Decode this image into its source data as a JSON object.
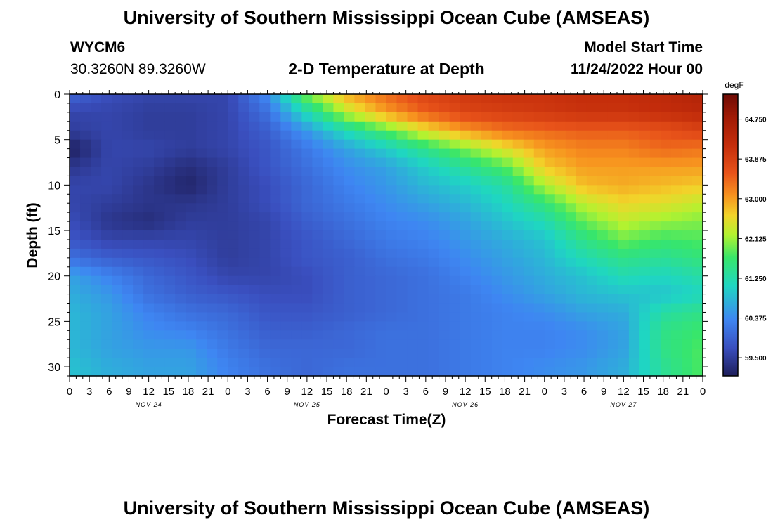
{
  "page": {
    "title": "University of Southern Mississippi Ocean Cube (AMSEAS)",
    "title_bottom": "University of Southern Mississippi Ocean Cube (AMSEAS)",
    "station": "WYCM6",
    "location": "30.3260N  89.3260W",
    "subtitle": "2-D Temperature at Depth",
    "model_label": "Model Start Time",
    "model_time": "11/24/2022 Hour 00"
  },
  "chart_data": {
    "type": "heatmap",
    "title": "2-D Temperature at Depth",
    "xlabel": "Forecast Time(Z)",
    "ylabel": "Depth (ft)",
    "x_hours": [
      0,
      3,
      6,
      9,
      12,
      15,
      18,
      21,
      24,
      27,
      30,
      33,
      36,
      39,
      42,
      45,
      48,
      51,
      54,
      57,
      60,
      63,
      66,
      69,
      72,
      75,
      78,
      81,
      84,
      87,
      90,
      93,
      96
    ],
    "x_tick_labels": [
      "0",
      "3",
      "6",
      "9",
      "12",
      "15",
      "18",
      "21",
      "0",
      "3",
      "6",
      "9",
      "12",
      "15",
      "18",
      "21",
      "0",
      "3",
      "6",
      "9",
      "12",
      "15",
      "18",
      "21",
      "0",
      "3",
      "6",
      "9",
      "12",
      "15",
      "18",
      "21",
      "0"
    ],
    "x_range": [
      0,
      96
    ],
    "day_labels": [
      {
        "hour": 12,
        "label": "NOV 24"
      },
      {
        "hour": 36,
        "label": "NOV 25"
      },
      {
        "hour": 60,
        "label": "NOV 26"
      },
      {
        "hour": 84,
        "label": "NOV 27"
      }
    ],
    "y_ticks": [
      0,
      5,
      10,
      15,
      20,
      25,
      30
    ],
    "y_range": [
      0,
      31
    ],
    "depths": [
      0,
      2,
      4,
      6,
      8,
      10,
      12,
      14,
      16,
      18,
      20,
      22,
      24,
      26,
      28,
      30
    ],
    "temperature": [
      [
        60.0,
        59.7,
        59.6,
        59.6,
        59.6,
        60.4,
        62.0,
        62.9,
        63.4,
        63.8,
        64.0,
        64.1,
        64.1,
        64.2,
        64.2,
        64.3,
        64.5
      ],
      [
        59.6,
        59.6,
        59.5,
        59.5,
        59.6,
        60.1,
        61.2,
        62.3,
        63.0,
        63.5,
        63.8,
        63.9,
        64.0,
        64.1,
        64.1,
        64.2,
        64.3
      ],
      [
        59.5,
        59.6,
        59.5,
        59.5,
        59.6,
        59.9,
        60.5,
        61.2,
        61.8,
        62.5,
        63.0,
        63.3,
        63.4,
        63.5,
        63.5,
        63.6,
        63.8
      ],
      [
        59.1,
        59.6,
        59.6,
        59.5,
        59.6,
        59.8,
        60.2,
        60.6,
        61.0,
        61.5,
        62.0,
        62.5,
        63.0,
        63.2,
        63.2,
        63.4,
        63.3
      ],
      [
        59.4,
        59.6,
        59.5,
        59.3,
        59.5,
        59.8,
        60.1,
        60.4,
        60.6,
        61.0,
        61.4,
        61.8,
        62.7,
        63.0,
        63.0,
        63.0,
        63.0
      ],
      [
        59.6,
        59.6,
        59.4,
        59.2,
        59.5,
        59.7,
        60.0,
        60.3,
        60.5,
        60.8,
        61.0,
        61.3,
        62.2,
        62.8,
        62.9,
        62.8,
        62.7
      ],
      [
        59.6,
        59.5,
        59.4,
        59.4,
        59.5,
        59.7,
        60.0,
        60.2,
        60.4,
        60.6,
        60.8,
        61.1,
        61.6,
        62.3,
        62.6,
        62.5,
        62.3
      ],
      [
        59.7,
        59.4,
        59.3,
        59.5,
        59.5,
        59.6,
        59.9,
        60.1,
        60.3,
        60.4,
        60.6,
        60.9,
        61.2,
        61.9,
        62.3,
        62.1,
        62.0
      ],
      [
        59.8,
        59.6,
        59.6,
        59.6,
        59.5,
        59.6,
        59.8,
        60.0,
        60.2,
        60.3,
        60.5,
        60.7,
        60.9,
        61.5,
        61.9,
        61.7,
        61.8
      ],
      [
        60.1,
        59.9,
        59.8,
        59.7,
        59.5,
        59.6,
        59.8,
        59.9,
        60.1,
        60.2,
        60.4,
        60.6,
        60.8,
        61.2,
        61.5,
        61.4,
        61.6
      ],
      [
        60.6,
        60.3,
        60.0,
        59.8,
        59.6,
        59.6,
        59.7,
        59.9,
        60.0,
        60.1,
        60.3,
        60.5,
        60.7,
        60.9,
        61.2,
        61.1,
        61.3
      ],
      [
        60.7,
        60.5,
        60.1,
        59.9,
        59.8,
        59.7,
        59.7,
        59.9,
        60.0,
        60.1,
        60.2,
        60.4,
        60.6,
        60.8,
        60.9,
        60.9,
        61.1
      ],
      [
        60.8,
        60.6,
        60.3,
        60.1,
        60.0,
        59.8,
        59.8,
        59.9,
        60.0,
        60.1,
        60.2,
        60.3,
        60.4,
        60.6,
        60.7,
        61.3,
        61.5
      ],
      [
        60.8,
        60.6,
        60.4,
        60.3,
        60.1,
        59.9,
        59.9,
        60.0,
        60.1,
        60.1,
        60.2,
        60.3,
        60.3,
        60.4,
        60.6,
        61.5,
        61.7
      ],
      [
        60.8,
        60.6,
        60.5,
        60.5,
        60.2,
        60.0,
        60.0,
        60.0,
        60.1,
        60.1,
        60.2,
        60.3,
        60.3,
        60.4,
        60.6,
        61.5,
        61.8
      ],
      [
        60.9,
        60.7,
        60.6,
        60.6,
        60.3,
        60.1,
        60.0,
        60.1,
        60.1,
        60.1,
        60.2,
        60.3,
        60.4,
        60.5,
        60.7,
        61.4,
        61.8
      ]
    ],
    "colorbar": {
      "label": "degF",
      "min": 59.1,
      "max": 65.3,
      "ticks": [
        "64.750",
        "63.875",
        "63.000",
        "62.125",
        "61.250",
        "60.375",
        "59.500"
      ]
    }
  }
}
